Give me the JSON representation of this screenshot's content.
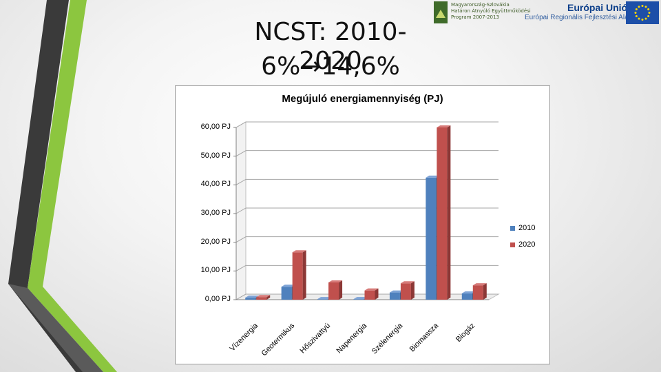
{
  "slide": {
    "title_line1": "NCST: 2010-2020",
    "title_line2": "6%→14,6%"
  },
  "logos": {
    "program_text": [
      "Magyarország-Szlovákia",
      "Határon Átnyúló Együttműködési",
      "Program 2007-2013"
    ],
    "eu_title": "Európai Unió",
    "eu_subtitle": "Európai Regionális Fejlesztési Alap"
  },
  "colors": {
    "series_2010": "#4f81bd",
    "series_2020": "#c0504d",
    "stripe_dark": "#3f3f3f",
    "stripe_green": "#8ec63f"
  },
  "chart_data": {
    "type": "bar",
    "title": "Megújuló energiamennyiség (PJ)",
    "categories": [
      "Vízenergia",
      "Geotermikus",
      "Hőszivattyú",
      "Napenergia",
      "Szélenergia",
      "Biomassza",
      "Biogáz"
    ],
    "series": [
      {
        "name": "2010",
        "values": [
          0.7,
          4.5,
          0.2,
          0.2,
          2.5,
          42.5,
          2.2
        ]
      },
      {
        "name": "2020",
        "values": [
          0.9,
          16.5,
          6.0,
          3.2,
          5.7,
          60.0,
          5.0
        ]
      }
    ],
    "ylim": [
      0,
      60
    ],
    "yticks": [
      "0,00 PJ",
      "10,00 PJ",
      "20,00 PJ",
      "30,00 PJ",
      "40,00 PJ",
      "50,00 PJ",
      "60,00 PJ"
    ],
    "grid": true,
    "legend_position": "right",
    "style": "3d"
  }
}
